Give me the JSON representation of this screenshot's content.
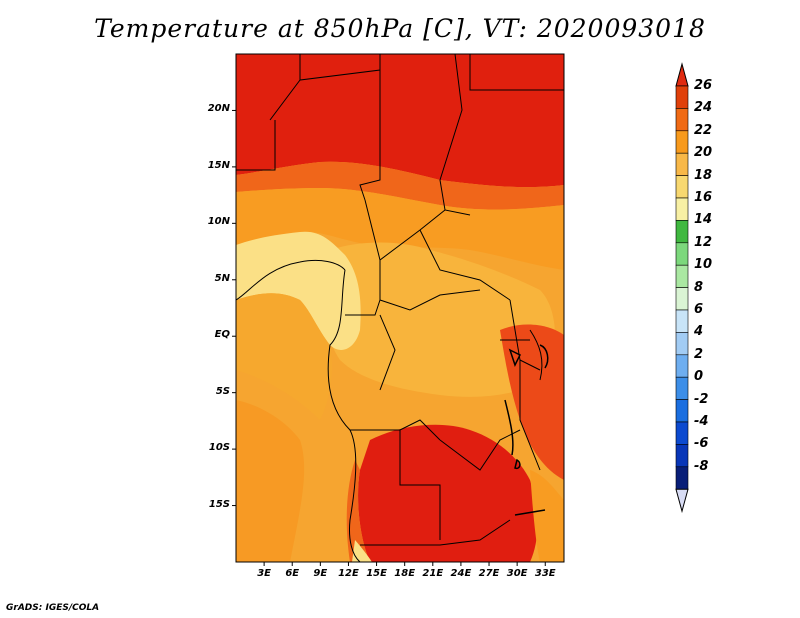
{
  "title": "Temperature at 850hPa [C], VT: 2020093018",
  "credit": "GrADS: IGES/COLA",
  "lat_labels": [
    {
      "text": "20N",
      "lat": 20
    },
    {
      "text": "15N",
      "lat": 15
    },
    {
      "text": "10N",
      "lat": 10
    },
    {
      "text": "5N",
      "lat": 5
    },
    {
      "text": "EQ",
      "lat": 0
    },
    {
      "text": "5S",
      "lat": -5
    },
    {
      "text": "10S",
      "lat": -10
    },
    {
      "text": "15S",
      "lat": -15
    }
  ],
  "lon_labels": [
    {
      "text": "3E",
      "lon": 3
    },
    {
      "text": "6E",
      "lon": 6
    },
    {
      "text": "9E",
      "lon": 9
    },
    {
      "text": "12E",
      "lon": 12
    },
    {
      "text": "15E",
      "lon": 15
    },
    {
      "text": "18E",
      "lon": 18
    },
    {
      "text": "21E",
      "lon": 21
    },
    {
      "text": "24E",
      "lon": 24
    },
    {
      "text": "27E",
      "lon": 27
    },
    {
      "text": "30E",
      "lon": 30
    },
    {
      "text": "33E",
      "lon": 33
    }
  ],
  "map_extent": {
    "lon": [
      0,
      35
    ],
    "lat": [
      -20,
      25
    ]
  },
  "colorbar": {
    "labels": [
      "26",
      "24",
      "22",
      "20",
      "18",
      "16",
      "14",
      "12",
      "10",
      "8",
      "6",
      "4",
      "2",
      "0",
      "-2",
      "-4",
      "-6",
      "-8"
    ],
    "colors_top_down": [
      "#e02a10",
      "#e0400a",
      "#f06a14",
      "#f89a1c",
      "#f8b848",
      "#f8d870",
      "#f8f0a4",
      "#40b840",
      "#7cd87c",
      "#aae8a2",
      "#daf4d4",
      "#c8e4f8",
      "#a2ccf4",
      "#6eaef0",
      "#3c8ee8",
      "#1a6ee0",
      "#0c4ad0",
      "#0836b8",
      "#081e78"
    ],
    "cap_bottom_color": "#d8dcf4"
  },
  "temperature_zones": [
    {
      "name": "northern-hot-band",
      "range": "24-26",
      "color": "#e0200e"
    },
    {
      "name": "northern-warm-band",
      "range": "22-24",
      "color": "#f0661a"
    },
    {
      "name": "sahel-band",
      "range": "20-22",
      "color": "#f89c22"
    },
    {
      "name": "central-plateau",
      "range": "18-20",
      "color": "#f8b43c"
    },
    {
      "name": "gulf-of-guinea-coast",
      "range": "16-18",
      "color": "#fbe086"
    },
    {
      "name": "southern-hot-core",
      "range": "24-26",
      "color": "#e01e10"
    },
    {
      "name": "east-african-warm",
      "range": "22-24",
      "color": "#ec4a18"
    }
  ]
}
